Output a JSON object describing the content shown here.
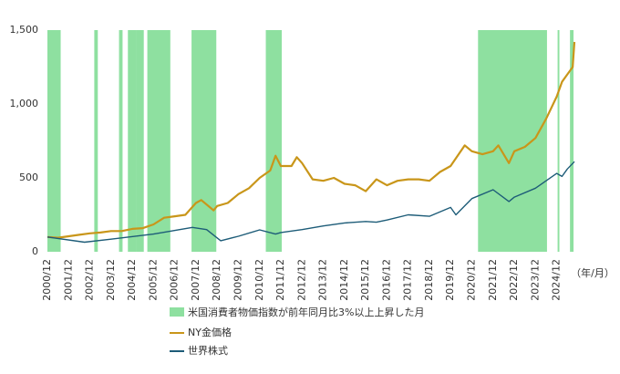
{
  "chart_data": {
    "type": "line",
    "xlim": [
      "2000/12",
      "2025/10"
    ],
    "xticks": [
      "2000/12",
      "2001/12",
      "2002/12",
      "2003/12",
      "2004/12",
      "2005/12",
      "2006/12",
      "2007/12",
      "2008/12",
      "2009/12",
      "2010/12",
      "2011/12",
      "2012/12",
      "2013/12",
      "2014/12",
      "2015/12",
      "2016/12",
      "2017/12",
      "2018/12",
      "2019/12",
      "2020/12",
      "2021/12",
      "2022/12",
      "2023/12",
      "2024/12"
    ],
    "x_unit": "（年/月）",
    "ylim": [
      0,
      1500
    ],
    "yticks": [
      0,
      500,
      {
        "value": 1000,
        "label": "1,000"
      },
      {
        "value": 1500,
        "label": "1,500"
      }
    ],
    "grid": false,
    "shaded": {
      "name": "米国消費者物価指数が前年同月比3%以上上昇した月",
      "color": "#8ee0a0",
      "periods": [
        [
          "2000/12",
          "2001/07"
        ],
        [
          "2003/03",
          "2003/04"
        ],
        [
          "2004/05",
          "2004/06"
        ],
        [
          "2004/10",
          "2005/02"
        ],
        [
          "2005/03",
          "2005/06"
        ],
        [
          "2005/09",
          "2006/09"
        ],
        [
          "2007/10",
          "2008/11"
        ],
        [
          "2011/04",
          "2011/12"
        ],
        [
          "2021/04",
          "2024/06"
        ],
        [
          "2025/01",
          "2025/01"
        ],
        [
          "2025/08",
          "2025/09"
        ]
      ]
    },
    "series": [
      {
        "name": "NY金価格",
        "color": "#c9961a",
        "x": [
          "2000/12",
          "2001/06",
          "2001/12",
          "2002/06",
          "2002/12",
          "2003/06",
          "2003/12",
          "2004/06",
          "2004/12",
          "2005/06",
          "2005/12",
          "2006/06",
          "2006/12",
          "2007/06",
          "2007/12",
          "2008/03",
          "2008/10",
          "2008/12",
          "2009/06",
          "2009/12",
          "2010/06",
          "2010/12",
          "2011/06",
          "2011/09",
          "2011/12",
          "2012/06",
          "2012/09",
          "2012/12",
          "2013/06",
          "2013/12",
          "2014/06",
          "2014/12",
          "2015/06",
          "2015/12",
          "2016/06",
          "2016/12",
          "2017/06",
          "2017/12",
          "2018/06",
          "2018/12",
          "2019/06",
          "2019/12",
          "2020/08",
          "2020/12",
          "2021/06",
          "2021/12",
          "2022/03",
          "2022/09",
          "2022/12",
          "2023/06",
          "2023/12",
          "2024/06",
          "2024/12",
          "2025/03",
          "2025/06",
          "2025/09",
          "2025/10"
        ],
        "values": [
          100,
          95,
          105,
          115,
          125,
          130,
          140,
          140,
          155,
          160,
          185,
          230,
          240,
          250,
          330,
          350,
          280,
          310,
          330,
          390,
          430,
          500,
          550,
          650,
          580,
          580,
          640,
          600,
          490,
          480,
          500,
          460,
          450,
          410,
          490,
          450,
          480,
          490,
          490,
          480,
          540,
          580,
          720,
          680,
          660,
          680,
          720,
          600,
          680,
          710,
          770,
          900,
          1050,
          1150,
          1200,
          1250,
          1420
        ]
      },
      {
        "name": "世界株式",
        "color": "#1d5c78",
        "x": [
          "2000/12",
          "2002/09",
          "2003/12",
          "2005/12",
          "2007/10",
          "2008/06",
          "2009/02",
          "2009/12",
          "2010/12",
          "2011/09",
          "2011/12",
          "2012/12",
          "2013/12",
          "2014/12",
          "2015/12",
          "2016/06",
          "2016/12",
          "2017/12",
          "2018/12",
          "2019/12",
          "2020/03",
          "2020/12",
          "2021/12",
          "2022/09",
          "2022/12",
          "2023/12",
          "2024/12",
          "2025/03",
          "2025/06",
          "2025/10"
        ],
        "values": [
          100,
          65,
          85,
          120,
          165,
          150,
          75,
          105,
          148,
          120,
          130,
          150,
          175,
          195,
          205,
          200,
          215,
          250,
          240,
          300,
          250,
          360,
          420,
          340,
          370,
          430,
          530,
          510,
          560,
          610
        ]
      }
    ]
  }
}
